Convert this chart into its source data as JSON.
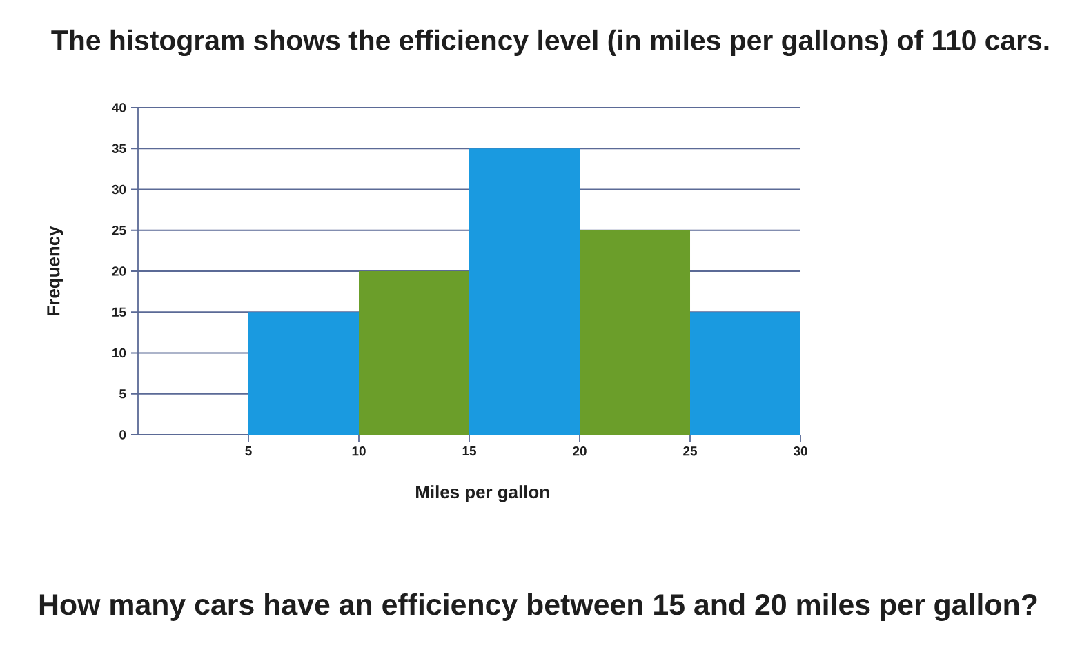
{
  "chart_data": {
    "type": "histogram",
    "title": "The histogram shows the efficiency level (in miles per gallons) of 110 cars.",
    "xlabel": "Miles per gallon",
    "ylabel": "Frequency",
    "bins": [
      5,
      10,
      15,
      20,
      25,
      30
    ],
    "values": [
      15,
      20,
      35,
      25,
      15
    ],
    "colors": [
      "#1a9ae0",
      "#6b9e2a",
      "#1a9ae0",
      "#6b9e2a",
      "#1a9ae0"
    ],
    "xlim": [
      0,
      30
    ],
    "xticks": [
      5,
      10,
      15,
      20,
      25,
      30
    ],
    "ylim": [
      0,
      40
    ],
    "yticks": [
      0,
      5,
      10,
      15,
      20,
      25,
      30,
      35,
      40
    ],
    "grid": "y",
    "annotations": [
      "How many cars have an efficiency between 15 and 20 miles per gallon?"
    ]
  }
}
